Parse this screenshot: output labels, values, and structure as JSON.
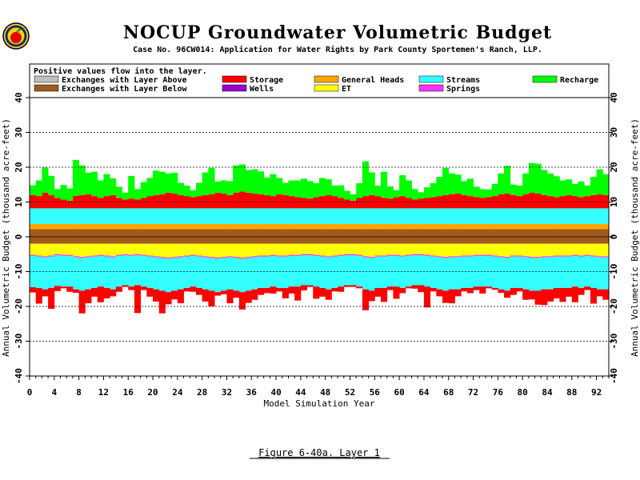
{
  "header": {
    "title": "NOCUP Groundwater Volumetric Budget",
    "subtitle": "Case No. 96CW014: Application for Water Rights by Park County Sportemen's Ranch, LLP."
  },
  "logo": {
    "icon": "apple-logo-icon"
  },
  "legend": {
    "note": "Positive values flow into the layer.",
    "items": [
      {
        "label": "Exchanges with Layer Above",
        "color": "#bfbfbf"
      },
      {
        "label": "Exchanges with Layer Below",
        "color": "#a05a1e"
      },
      {
        "label": "Storage",
        "color": "#ff0000"
      },
      {
        "label": "Wells",
        "color": "#9900cc"
      },
      {
        "label": "General Heads",
        "color": "#ffa500"
      },
      {
        "label": "ET",
        "color": "#ffff00"
      },
      {
        "label": "Streams",
        "color": "#33ffff"
      },
      {
        "label": "Springs",
        "color": "#ff33ff"
      },
      {
        "label": "Recharge",
        "color": "#00ff00"
      }
    ]
  },
  "caption": "Figure 6-40a.  Layer 1",
  "chart_data": {
    "type": "bar",
    "stacked": true,
    "xlabel": "Model Simulation Year",
    "ylabel": "Annual Volumetric Budget (thousand acre-feet)",
    "xlim": [
      0,
      94
    ],
    "ylim": [
      -40,
      40
    ],
    "x_ticks": [
      0,
      4,
      8,
      12,
      16,
      20,
      24,
      28,
      32,
      36,
      40,
      44,
      48,
      52,
      56,
      60,
      64,
      68,
      72,
      76,
      80,
      84,
      88,
      92
    ],
    "y_ticks": [
      -40,
      -30,
      -20,
      -10,
      0,
      10,
      20,
      30,
      40
    ],
    "grid": "horizontal dashed",
    "years": [
      0,
      1,
      2,
      3,
      4,
      5,
      6,
      7,
      8,
      9,
      10,
      11,
      12,
      13,
      14,
      15,
      16,
      17,
      18,
      19,
      20,
      21,
      22,
      23,
      24,
      25,
      26,
      27,
      28,
      29,
      30,
      31,
      32,
      33,
      34,
      35,
      36,
      37,
      38,
      39,
      40,
      41,
      42,
      43,
      44,
      45,
      46,
      47,
      48,
      49,
      50,
      51,
      52,
      53,
      54,
      55,
      56,
      57,
      58,
      59,
      60,
      61,
      62,
      63,
      64,
      65,
      66,
      67,
      68,
      69,
      70,
      71,
      72,
      73,
      74,
      75,
      76,
      77,
      78,
      79,
      80,
      81,
      82,
      83,
      84,
      85,
      86,
      87,
      88,
      89,
      90,
      91,
      92,
      93
    ],
    "series": [
      {
        "name": "Exchanges with Layer Below",
        "sign": "positive",
        "color": "#a05a1e",
        "values": [
          2.2,
          2.2,
          2.2,
          2.2,
          2.2,
          2.2,
          2.2,
          2.2,
          2.2,
          2.2,
          2.2,
          2.2,
          2.2,
          2.2,
          2.2,
          2.2,
          2.2,
          2.2,
          2.2,
          2.2,
          2.2,
          2.2,
          2.2,
          2.2,
          2.2,
          2.2,
          2.2,
          2.2,
          2.2,
          2.2,
          2.2,
          2.2,
          2.2,
          2.2,
          2.2,
          2.2,
          2.2,
          2.2,
          2.2,
          2.2,
          2.2,
          2.2,
          2.2,
          2.2,
          2.2,
          2.2,
          2.2,
          2.2,
          2.2,
          2.2,
          2.2,
          2.2,
          2.2,
          2.2,
          2.2,
          2.2,
          2.2,
          2.2,
          2.2,
          2.2,
          2.2,
          2.2,
          2.2,
          2.2,
          2.2,
          2.2,
          2.2,
          2.2,
          2.2,
          2.2,
          2.2,
          2.2,
          2.2,
          2.2,
          2.2,
          2.2,
          2.2,
          2.2,
          2.2,
          2.2,
          2.2,
          2.2,
          2.2,
          2.2,
          2.2,
          2.2,
          2.2,
          2.2,
          2.2,
          2.2,
          2.2,
          2.2,
          2.2,
          2.2
        ]
      },
      {
        "name": "General Heads",
        "sign": "positive",
        "color": "#ffa500",
        "values": [
          1.5,
          1.5,
          1.5,
          1.5,
          1.5,
          1.5,
          1.5,
          1.5,
          1.5,
          1.5,
          1.5,
          1.5,
          1.5,
          1.5,
          1.5,
          1.5,
          1.5,
          1.5,
          1.5,
          1.5,
          1.5,
          1.5,
          1.5,
          1.5,
          1.5,
          1.5,
          1.5,
          1.5,
          1.5,
          1.5,
          1.5,
          1.5,
          1.5,
          1.5,
          1.5,
          1.5,
          1.5,
          1.5,
          1.5,
          1.5,
          1.5,
          1.5,
          1.5,
          1.5,
          1.5,
          1.5,
          1.5,
          1.5,
          1.5,
          1.5,
          1.5,
          1.5,
          1.5,
          1.5,
          1.5,
          1.5,
          1.5,
          1.5,
          1.5,
          1.5,
          1.5,
          1.5,
          1.5,
          1.5,
          1.5,
          1.5,
          1.5,
          1.5,
          1.5,
          1.5,
          1.5,
          1.5,
          1.5,
          1.5,
          1.5,
          1.5,
          1.5,
          1.5,
          1.5,
          1.5,
          1.5,
          1.5,
          1.5,
          1.5,
          1.5,
          1.5,
          1.5,
          1.5,
          1.5,
          1.5,
          1.5,
          1.5,
          1.5,
          1.5
        ]
      },
      {
        "name": "Streams",
        "sign": "positive",
        "color": "#33ffff",
        "values": [
          4.5,
          4.5,
          4.5,
          4.5,
          4.5,
          4.5,
          4.5,
          4.5,
          4.5,
          4.5,
          4.5,
          4.5,
          4.5,
          4.5,
          4.5,
          4.5,
          4.5,
          4.5,
          4.5,
          4.5,
          4.5,
          4.5,
          4.5,
          4.5,
          4.5,
          4.5,
          4.5,
          4.5,
          4.5,
          4.5,
          4.5,
          4.5,
          4.5,
          4.5,
          4.5,
          4.5,
          4.5,
          4.5,
          4.5,
          4.5,
          4.5,
          4.5,
          4.5,
          4.5,
          4.5,
          4.5,
          4.5,
          4.5,
          4.5,
          4.5,
          4.5,
          4.5,
          4.5,
          4.5,
          4.5,
          4.5,
          4.5,
          4.5,
          4.5,
          4.5,
          4.5,
          4.5,
          4.5,
          4.5,
          4.5,
          4.5,
          4.5,
          4.5,
          4.5,
          4.5,
          4.5,
          4.5,
          4.5,
          4.5,
          4.5,
          4.5,
          4.5,
          4.5,
          4.5,
          4.5,
          4.5,
          4.5,
          4.5,
          4.5,
          4.5,
          4.5,
          4.5,
          4.5,
          4.5,
          4.5,
          4.5,
          4.5,
          4.5,
          4.5
        ]
      },
      {
        "name": "Storage",
        "sign": "positive",
        "color": "#ff0000",
        "values": [
          3.8,
          3.5,
          4.5,
          3.8,
          3.0,
          2.5,
          2.2,
          3.6,
          3.8,
          4.0,
          3.5,
          3.0,
          3.5,
          3.8,
          3.0,
          2.5,
          2.8,
          2.5,
          3.0,
          3.5,
          3.8,
          4.0,
          4.5,
          4.2,
          3.8,
          3.5,
          3.2,
          3.5,
          3.8,
          4.0,
          4.5,
          4.2,
          3.8,
          4.5,
          4.8,
          4.5,
          4.2,
          4.0,
          3.8,
          3.5,
          4.0,
          3.8,
          3.5,
          3.2,
          3.0,
          2.8,
          3.2,
          3.5,
          3.8,
          3.5,
          3.0,
          2.5,
          2.2,
          3.0,
          3.5,
          3.8,
          3.5,
          3.0,
          2.8,
          3.2,
          3.5,
          3.0,
          2.5,
          2.8,
          3.0,
          3.2,
          3.5,
          3.8,
          4.0,
          4.2,
          3.8,
          3.5,
          3.2,
          3.0,
          3.2,
          3.5,
          4.0,
          4.2,
          3.8,
          3.5,
          4.0,
          4.5,
          4.2,
          3.8,
          3.5,
          3.2,
          3.5,
          3.8,
          3.5,
          3.2,
          3.5,
          3.8,
          4.0,
          3.8
        ]
      },
      {
        "name": "Recharge",
        "sign": "positive",
        "color": "#00ff00",
        "values": [
          2.8,
          4.5,
          7.2,
          5.5,
          2.5,
          4.2,
          3.5,
          10.3,
          8.5,
          6.2,
          7.0,
          5.0,
          6.3,
          4.8,
          3.2,
          2.0,
          6.5,
          3.0,
          4.5,
          5.2,
          7.0,
          6.5,
          5.5,
          6.0,
          3.5,
          3.0,
          2.0,
          3.8,
          6.5,
          7.6,
          3.2,
          3.8,
          4.0,
          7.8,
          7.8,
          6.5,
          7.0,
          6.6,
          5.0,
          6.3,
          4.7,
          3.5,
          4.5,
          4.8,
          5.5,
          5.0,
          4.0,
          5.2,
          4.5,
          3.0,
          3.6,
          2.5,
          1.8,
          4.2,
          10.0,
          6.5,
          3.0,
          7.5,
          3.5,
          2.0,
          6.0,
          5.0,
          3.0,
          1.8,
          3.0,
          4.0,
          5.5,
          7.8,
          6.0,
          5.5,
          4.0,
          5.0,
          3.0,
          2.5,
          2.2,
          3.5,
          6.0,
          8.0,
          3.0,
          3.0,
          6.0,
          8.5,
          8.6,
          7.2,
          6.5,
          6.0,
          4.5,
          4.5,
          3.5,
          4.5,
          3.0,
          5.2,
          7.2,
          6.0
        ]
      },
      {
        "name": "Exchanges with Layer Below",
        "sign": "negative",
        "color": "#a05a1e",
        "values": [
          -2.0,
          -2.0,
          -2.0,
          -2.0,
          -2.0,
          -2.0,
          -2.0,
          -2.0,
          -2.0,
          -2.0,
          -2.0,
          -2.0,
          -2.0,
          -2.0,
          -2.0,
          -2.0,
          -2.0,
          -2.0,
          -2.0,
          -2.0,
          -2.0,
          -2.0,
          -2.0,
          -2.0,
          -2.0,
          -2.0,
          -2.0,
          -2.0,
          -2.0,
          -2.0,
          -2.0,
          -2.0,
          -2.0,
          -2.0,
          -2.0,
          -2.0,
          -2.0,
          -2.0,
          -2.0,
          -2.0,
          -2.0,
          -2.0,
          -2.0,
          -2.0,
          -2.0,
          -2.0,
          -2.0,
          -2.0,
          -2.0,
          -2.0,
          -2.0,
          -2.0,
          -2.0,
          -2.0,
          -2.0,
          -2.0,
          -2.0,
          -2.0,
          -2.0,
          -2.0,
          -2.0,
          -2.0,
          -2.0,
          -2.0,
          -2.0,
          -2.0,
          -2.0,
          -2.0,
          -2.0,
          -2.0,
          -2.0,
          -2.0,
          -2.0,
          -2.0,
          -2.0,
          -2.0,
          -2.0,
          -2.0,
          -2.0,
          -2.0,
          -2.0,
          -2.0,
          -2.0,
          -2.0,
          -2.0,
          -2.0,
          -2.0,
          -2.0,
          -2.0,
          -2.0,
          -2.0,
          -2.0,
          -2.0,
          -2.0
        ]
      },
      {
        "name": "ET",
        "sign": "negative",
        "color": "#ffff00",
        "values": [
          -3.2,
          -3.4,
          -3.6,
          -3.4,
          -3.0,
          -3.2,
          -3.2,
          -3.6,
          -3.8,
          -3.6,
          -3.4,
          -3.2,
          -3.4,
          -3.6,
          -3.2,
          -3.0,
          -3.2,
          -3.0,
          -3.2,
          -3.4,
          -3.6,
          -3.8,
          -4.0,
          -3.8,
          -3.6,
          -3.4,
          -3.2,
          -3.4,
          -3.6,
          -3.8,
          -4.0,
          -3.8,
          -3.6,
          -3.8,
          -4.0,
          -3.8,
          -3.6,
          -3.4,
          -3.4,
          -3.2,
          -3.4,
          -3.4,
          -3.2,
          -3.2,
          -3.0,
          -3.0,
          -3.2,
          -3.4,
          -3.6,
          -3.4,
          -3.2,
          -3.0,
          -3.0,
          -3.2,
          -3.6,
          -3.8,
          -3.4,
          -3.4,
          -3.2,
          -3.2,
          -3.4,
          -3.2,
          -3.0,
          -3.0,
          -3.2,
          -3.4,
          -3.6,
          -3.8,
          -3.6,
          -3.6,
          -3.4,
          -3.4,
          -3.2,
          -3.2,
          -3.2,
          -3.4,
          -3.6,
          -3.8,
          -3.4,
          -3.4,
          -3.6,
          -3.8,
          -3.8,
          -3.6,
          -3.6,
          -3.4,
          -3.4,
          -3.4,
          -3.2,
          -3.4,
          -3.2,
          -3.4,
          -3.6,
          -3.6
        ]
      },
      {
        "name": "Springs",
        "sign": "negative",
        "color": "#ff33ff",
        "values": [
          -0.3,
          -0.3,
          -0.3,
          -0.3,
          -0.3,
          -0.3,
          -0.3,
          -0.3,
          -0.3,
          -0.3,
          -0.3,
          -0.3,
          -0.3,
          -0.3,
          -0.3,
          -0.3,
          -0.3,
          -0.3,
          -0.3,
          -0.3,
          -0.3,
          -0.3,
          -0.3,
          -0.3,
          -0.3,
          -0.3,
          -0.3,
          -0.3,
          -0.3,
          -0.3,
          -0.3,
          -0.3,
          -0.3,
          -0.3,
          -0.3,
          -0.3,
          -0.3,
          -0.3,
          -0.3,
          -0.3,
          -0.3,
          -0.3,
          -0.3,
          -0.3,
          -0.3,
          -0.3,
          -0.3,
          -0.3,
          -0.3,
          -0.3,
          -0.3,
          -0.3,
          -0.3,
          -0.3,
          -0.3,
          -0.3,
          -0.3,
          -0.3,
          -0.3,
          -0.3,
          -0.3,
          -0.3,
          -0.3,
          -0.3,
          -0.3,
          -0.3,
          -0.3,
          -0.3,
          -0.3,
          -0.3,
          -0.3,
          -0.3,
          -0.3,
          -0.3,
          -0.3,
          -0.3,
          -0.3,
          -0.3,
          -0.3,
          -0.3,
          -0.3,
          -0.3,
          -0.3,
          -0.3,
          -0.3,
          -0.3,
          -0.3,
          -0.3,
          -0.3,
          -0.3,
          -0.3,
          -0.3,
          -0.3,
          -0.3
        ]
      },
      {
        "name": "Streams",
        "sign": "negative",
        "color": "#33ffff",
        "values": [
          -9.0,
          -9.0,
          -9.2,
          -9.0,
          -8.8,
          -8.8,
          -8.8,
          -9.2,
          -9.4,
          -9.2,
          -9.0,
          -8.8,
          -9.0,
          -9.2,
          -8.8,
          -8.6,
          -8.8,
          -8.6,
          -8.8,
          -9.0,
          -9.2,
          -9.4,
          -9.6,
          -9.4,
          -9.2,
          -9.0,
          -8.8,
          -9.0,
          -9.2,
          -9.4,
          -9.6,
          -9.4,
          -9.2,
          -9.4,
          -9.6,
          -9.4,
          -9.2,
          -9.0,
          -9.0,
          -8.8,
          -9.0,
          -9.0,
          -8.8,
          -8.8,
          -8.6,
          -8.6,
          -8.8,
          -9.0,
          -9.2,
          -9.0,
          -8.8,
          -8.6,
          -8.6,
          -8.8,
          -9.2,
          -9.4,
          -9.0,
          -9.0,
          -8.8,
          -8.8,
          -9.0,
          -8.8,
          -8.6,
          -8.6,
          -8.8,
          -9.0,
          -9.2,
          -9.4,
          -9.2,
          -9.2,
          -9.0,
          -9.0,
          -8.8,
          -8.8,
          -8.8,
          -9.0,
          -9.2,
          -9.4,
          -9.0,
          -9.0,
          -9.2,
          -9.4,
          -9.4,
          -9.2,
          -9.2,
          -9.0,
          -9.0,
          -9.0,
          -8.8,
          -9.0,
          -8.8,
          -9.0,
          -9.2,
          -9.2
        ]
      },
      {
        "name": "Storage",
        "sign": "negative",
        "color": "#ff0000",
        "values": [
          -1.5,
          -4.5,
          -2.0,
          -6.0,
          -1.5,
          -0.5,
          -1.5,
          -1.0,
          -6.5,
          -4.0,
          -2.5,
          -4.5,
          -3.0,
          -2.0,
          -1.5,
          -0.5,
          -1.0,
          -8.0,
          -1.0,
          -2.5,
          -3.5,
          -6.5,
          -3.5,
          -2.5,
          -4.0,
          -1.0,
          -1.5,
          -2.0,
          -3.5,
          -4.5,
          -1.0,
          -1.0,
          -4.0,
          -2.0,
          -5.0,
          -3.5,
          -3.0,
          -2.0,
          -1.5,
          -2.0,
          -1.0,
          -3.0,
          -2.0,
          -4.0,
          -1.5,
          -0.5,
          -3.5,
          -2.5,
          -3.0,
          -1.0,
          -1.5,
          -0.5,
          -0.5,
          -0.5,
          -6.0,
          -3.0,
          -2.5,
          -4.0,
          -1.0,
          -3.5,
          -1.5,
          -0.5,
          -1.0,
          -2.0,
          -6.0,
          -1.0,
          -2.0,
          -3.5,
          -4.0,
          -2.0,
          -1.0,
          -1.5,
          -1.0,
          -2.0,
          -0.5,
          -0.5,
          -1.0,
          -2.0,
          -2.0,
          -1.0,
          -3.0,
          -2.5,
          -4.0,
          -4.5,
          -3.5,
          -3.0,
          -4.0,
          -2.5,
          -4.5,
          -2.0,
          -1.0,
          -4.5,
          -2.0,
          -3.0
        ]
      }
    ]
  }
}
